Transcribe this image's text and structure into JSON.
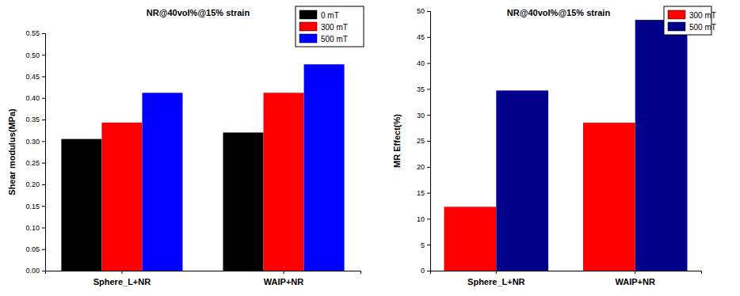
{
  "chart_data": [
    {
      "type": "bar",
      "title": "NR@40vol%@15% strain",
      "y_label": "Shear modulus(MPa)",
      "categories": [
        "Sphere_L+NR",
        "WAIP+NR"
      ],
      "series": [
        {
          "name": "0 mT",
          "color": "#000000",
          "values": [
            0.305,
            0.32
          ]
        },
        {
          "name": "300 mT",
          "color": "#ff0000",
          "values": [
            0.343,
            0.412
          ]
        },
        {
          "name": "500 mT",
          "color": "#0000ff",
          "values": [
            0.412,
            0.478
          ]
        }
      ],
      "ylim": [
        0,
        0.55
      ],
      "yticks": [
        {
          "value": 0,
          "label": "0.00"
        },
        {
          "value": 0.05,
          "label": "0.05"
        },
        {
          "value": 0.1,
          "label": "0.10"
        },
        {
          "value": 0.15,
          "label": "0.15"
        },
        {
          "value": 0.2,
          "label": "0.20"
        },
        {
          "value": 0.25,
          "label": "0.25"
        },
        {
          "value": 0.3,
          "label": "0.30"
        },
        {
          "value": 0.35,
          "label": "0.35"
        },
        {
          "value": 0.4,
          "label": "0.40"
        },
        {
          "value": 0.45,
          "label": "0.45"
        },
        {
          "value": 0.5,
          "label": "0.50"
        },
        {
          "value": 0.55,
          "label": "0.55"
        }
      ],
      "legend": "top-right",
      "grid": false
    },
    {
      "type": "bar",
      "title": "NR@40vol%@15% strain",
      "y_label": "MR Effect(%)",
      "categories": [
        "Sphere_L+NR",
        "WAIP+NR"
      ],
      "series": [
        {
          "name": "300 mT",
          "color": "#ff0000",
          "values": [
            12.3,
            28.5
          ]
        },
        {
          "name": "500 mT",
          "color": "#00008b",
          "values": [
            34.7,
            48.3
          ]
        }
      ],
      "ylim": [
        0,
        50
      ],
      "yticks": [
        0,
        5,
        10,
        15,
        20,
        25,
        30,
        35,
        40,
        45,
        50
      ],
      "legend": "top-right",
      "grid": false
    }
  ]
}
